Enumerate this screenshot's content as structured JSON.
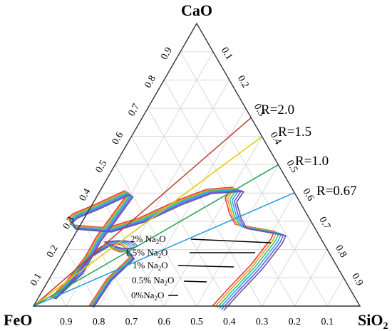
{
  "vertices": {
    "top": "CaO",
    "left": "FeO",
    "right_base": "SiO",
    "right_sub": "2"
  },
  "ticks": {
    "bottom": [
      "0.9",
      "0.8",
      "0.7",
      "0.6",
      "0.5",
      "0.4",
      "0.3",
      "0.2",
      "0.1"
    ],
    "left": [
      "0.1",
      "0.2",
      "0.3",
      "0.4",
      "0.5",
      "0.6",
      "0.7",
      "0.8",
      "0.9"
    ],
    "right": [
      "0.1",
      "0.2",
      "0.3",
      "0.4",
      "0.5",
      "0.6",
      "0.7",
      "0.8",
      "0.9"
    ]
  },
  "basicity_lines": [
    {
      "label": "R=2.0",
      "R": 2.0,
      "color": "#c0392b"
    },
    {
      "label": "R=1.5",
      "R": 1.5,
      "color": "#e6c700"
    },
    {
      "label": "R=1.0",
      "R": 1.0,
      "color": "#27a050"
    },
    {
      "label": "R=0.67",
      "R": 0.67,
      "color": "#1f9fd8"
    }
  ],
  "na2o_labels": [
    {
      "pre": "2% Na",
      "sub": "2",
      "post": "O",
      "color": "#000000"
    },
    {
      "pre": "1.5% Na",
      "sub": "2",
      "post": "O",
      "color": "#000000"
    },
    {
      "pre": "1% Na",
      "sub": "2",
      "post": "O",
      "color": "#000000"
    },
    {
      "pre": "0.5% Na",
      "sub": "2",
      "post": "O",
      "color": "#000000"
    },
    {
      "pre": "0%Na",
      "sub": "2",
      "post": "O",
      "color": "#000000"
    }
  ],
  "contour_colors": [
    "#e63946",
    "#f39c12",
    "#2ecc71",
    "#3aa0ff",
    "#6c5ce7",
    "#5a5a9a"
  ]
}
